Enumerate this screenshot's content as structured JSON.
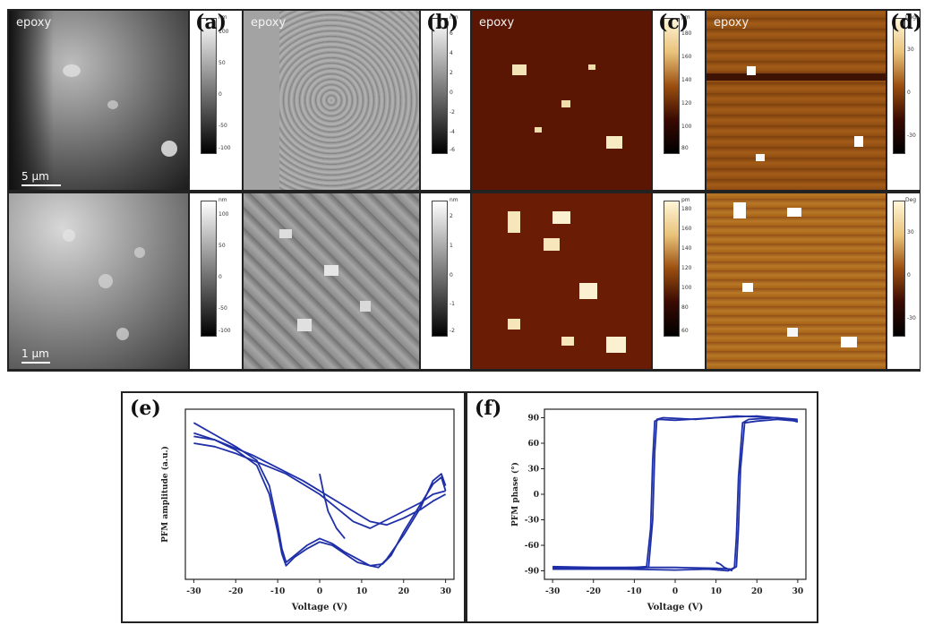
{
  "panels": {
    "a": {
      "letter": "(a)",
      "epoxy": "epoxy",
      "scale_top": "5 μm",
      "scale_bottom": "1 μm",
      "cbar_top_unit": "nm",
      "cbar_top_ticks": [
        "100",
        "50",
        "0",
        "-50",
        "-100"
      ],
      "cbar_bottom_unit": "nm",
      "cbar_bottom_ticks": [
        "100",
        "50",
        "0",
        "-50",
        "-100"
      ]
    },
    "b": {
      "letter": "(b)",
      "epoxy": "epoxy",
      "cbar_top_unit": "nm",
      "cbar_top_ticks": [
        "6",
        "4",
        "2",
        "0",
        "-2",
        "-4",
        "-6"
      ],
      "cbar_bottom_unit": "nm",
      "cbar_bottom_ticks": [
        "2",
        "1",
        "0",
        "-1",
        "-2"
      ]
    },
    "c": {
      "letter": "(c)",
      "epoxy": "epoxy",
      "cbar_top_unit": "pm",
      "cbar_top_ticks": [
        "180",
        "160",
        "140",
        "120",
        "100",
        "80"
      ],
      "cbar_bottom_unit": "pm",
      "cbar_bottom_ticks": [
        "180",
        "160",
        "140",
        "120",
        "100",
        "80",
        "60"
      ]
    },
    "d": {
      "letter": "(d)",
      "epoxy": "epoxy",
      "cbar_top_unit": "Deg",
      "cbar_top_ticks": [
        "30",
        "0",
        "-30"
      ],
      "cbar_bottom_unit": "Deg",
      "cbar_bottom_ticks": [
        "30",
        "0",
        "-30"
      ]
    }
  },
  "colors": {
    "afm_gold_dark": "#3a0a02",
    "afm_gold_mid": "#9a4f0f",
    "afm_gold_light": "#e9c27a",
    "curve": "#1f2fa8"
  },
  "chart_data": [
    {
      "type": "line",
      "letter": "(e)",
      "xlabel": "Voltage (V)",
      "ylabel": "PFM amplitude (a.u.)",
      "xlim": [
        -32,
        32
      ],
      "x_ticks": [
        -30,
        -20,
        -10,
        0,
        10,
        20,
        30
      ],
      "x_tick_labels": [
        "-30",
        "-20",
        "-10",
        "0",
        "10",
        "20",
        "30"
      ],
      "ylim": [
        0,
        1
      ],
      "series": [
        {
          "x": [
            -30,
            -25,
            -20,
            -15,
            -12,
            -10,
            -9,
            -8,
            -6,
            -3,
            0,
            3,
            6,
            9,
            12,
            14,
            16,
            20,
            24,
            27,
            29,
            30
          ],
          "y": [
            0.92,
            0.85,
            0.78,
            0.7,
            0.55,
            0.32,
            0.18,
            0.1,
            0.14,
            0.2,
            0.24,
            0.21,
            0.16,
            0.12,
            0.08,
            0.07,
            0.12,
            0.26,
            0.42,
            0.58,
            0.62,
            0.55
          ]
        },
        {
          "x": [
            30,
            27,
            24,
            20,
            16,
            12,
            8,
            4,
            0,
            -4,
            -8,
            -12,
            -16,
            -20,
            -25,
            -30
          ],
          "y": [
            0.52,
            0.5,
            0.45,
            0.4,
            0.35,
            0.3,
            0.34,
            0.42,
            0.5,
            0.56,
            0.62,
            0.66,
            0.7,
            0.74,
            0.78,
            0.8
          ]
        },
        {
          "x": [
            -30,
            -25,
            -20,
            -15,
            -12,
            -10,
            -9,
            -8,
            -6,
            -3,
            0,
            3,
            6,
            9,
            12,
            15,
            17,
            20,
            24,
            27,
            29,
            30
          ],
          "y": [
            0.86,
            0.82,
            0.76,
            0.67,
            0.5,
            0.28,
            0.15,
            0.08,
            0.13,
            0.18,
            0.22,
            0.2,
            0.15,
            0.1,
            0.08,
            0.09,
            0.14,
            0.28,
            0.44,
            0.56,
            0.6,
            0.52
          ]
        },
        {
          "x": [
            30,
            27,
            24,
            20,
            16,
            12,
            8,
            4,
            0,
            -4,
            -8,
            -12,
            -16,
            -20,
            -25,
            -30
          ],
          "y": [
            0.5,
            0.46,
            0.41,
            0.36,
            0.32,
            0.34,
            0.4,
            0.46,
            0.52,
            0.58,
            0.63,
            0.68,
            0.73,
            0.77,
            0.82,
            0.84
          ]
        },
        {
          "x": [
            0,
            1,
            2,
            4,
            6
          ],
          "y": [
            0.62,
            0.5,
            0.4,
            0.3,
            0.24
          ]
        }
      ]
    },
    {
      "type": "line",
      "letter": "(f)",
      "xlabel": "Voltage (V)",
      "ylabel": "PFM phase (°)",
      "xlim": [
        -32,
        32
      ],
      "x_ticks": [
        -30,
        -20,
        -10,
        0,
        10,
        20,
        30
      ],
      "x_tick_labels": [
        "-30",
        "-20",
        "-10",
        "0",
        "10",
        "20",
        "30"
      ],
      "ylim": [
        -100,
        100
      ],
      "y_ticks": [
        90,
        60,
        30,
        0,
        -30,
        -60,
        -90
      ],
      "y_tick_labels": [
        "90",
        "60",
        "30",
        "0",
        "-30",
        "-60",
        "-90"
      ],
      "series": [
        {
          "x": [
            -30,
            -20,
            -10,
            -7,
            -6,
            -5.5,
            -5,
            -4,
            0,
            10,
            20,
            28,
            30
          ],
          "y": [
            -85,
            -86,
            -86,
            -85,
            -40,
            40,
            86,
            88,
            87,
            90,
            92,
            88,
            85
          ]
        },
        {
          "x": [
            30,
            25,
            20,
            17,
            16,
            15.5,
            15,
            14,
            10,
            0,
            -10,
            -20,
            -30
          ],
          "y": [
            86,
            88,
            86,
            84,
            30,
            -40,
            -85,
            -88,
            -87,
            -86,
            -86,
            -87,
            -86
          ]
        },
        {
          "x": [
            -30,
            -20,
            -10,
            -6.5,
            -5.5,
            -5,
            -4.5,
            -3,
            5,
            15,
            25,
            30
          ],
          "y": [
            -88,
            -88,
            -87,
            -86,
            -30,
            50,
            88,
            90,
            88,
            92,
            90,
            86
          ]
        },
        {
          "x": [
            30,
            25,
            18,
            16.5,
            15.5,
            15,
            14.5,
            13,
            8,
            0,
            -12,
            -25,
            -30
          ],
          "y": [
            88,
            90,
            88,
            84,
            20,
            -50,
            -86,
            -90,
            -88,
            -89,
            -88,
            -88,
            -87
          ]
        },
        {
          "x": [
            10,
            11,
            12,
            13,
            14
          ],
          "y": [
            -80,
            -82,
            -86,
            -88,
            -90
          ]
        }
      ]
    }
  ]
}
